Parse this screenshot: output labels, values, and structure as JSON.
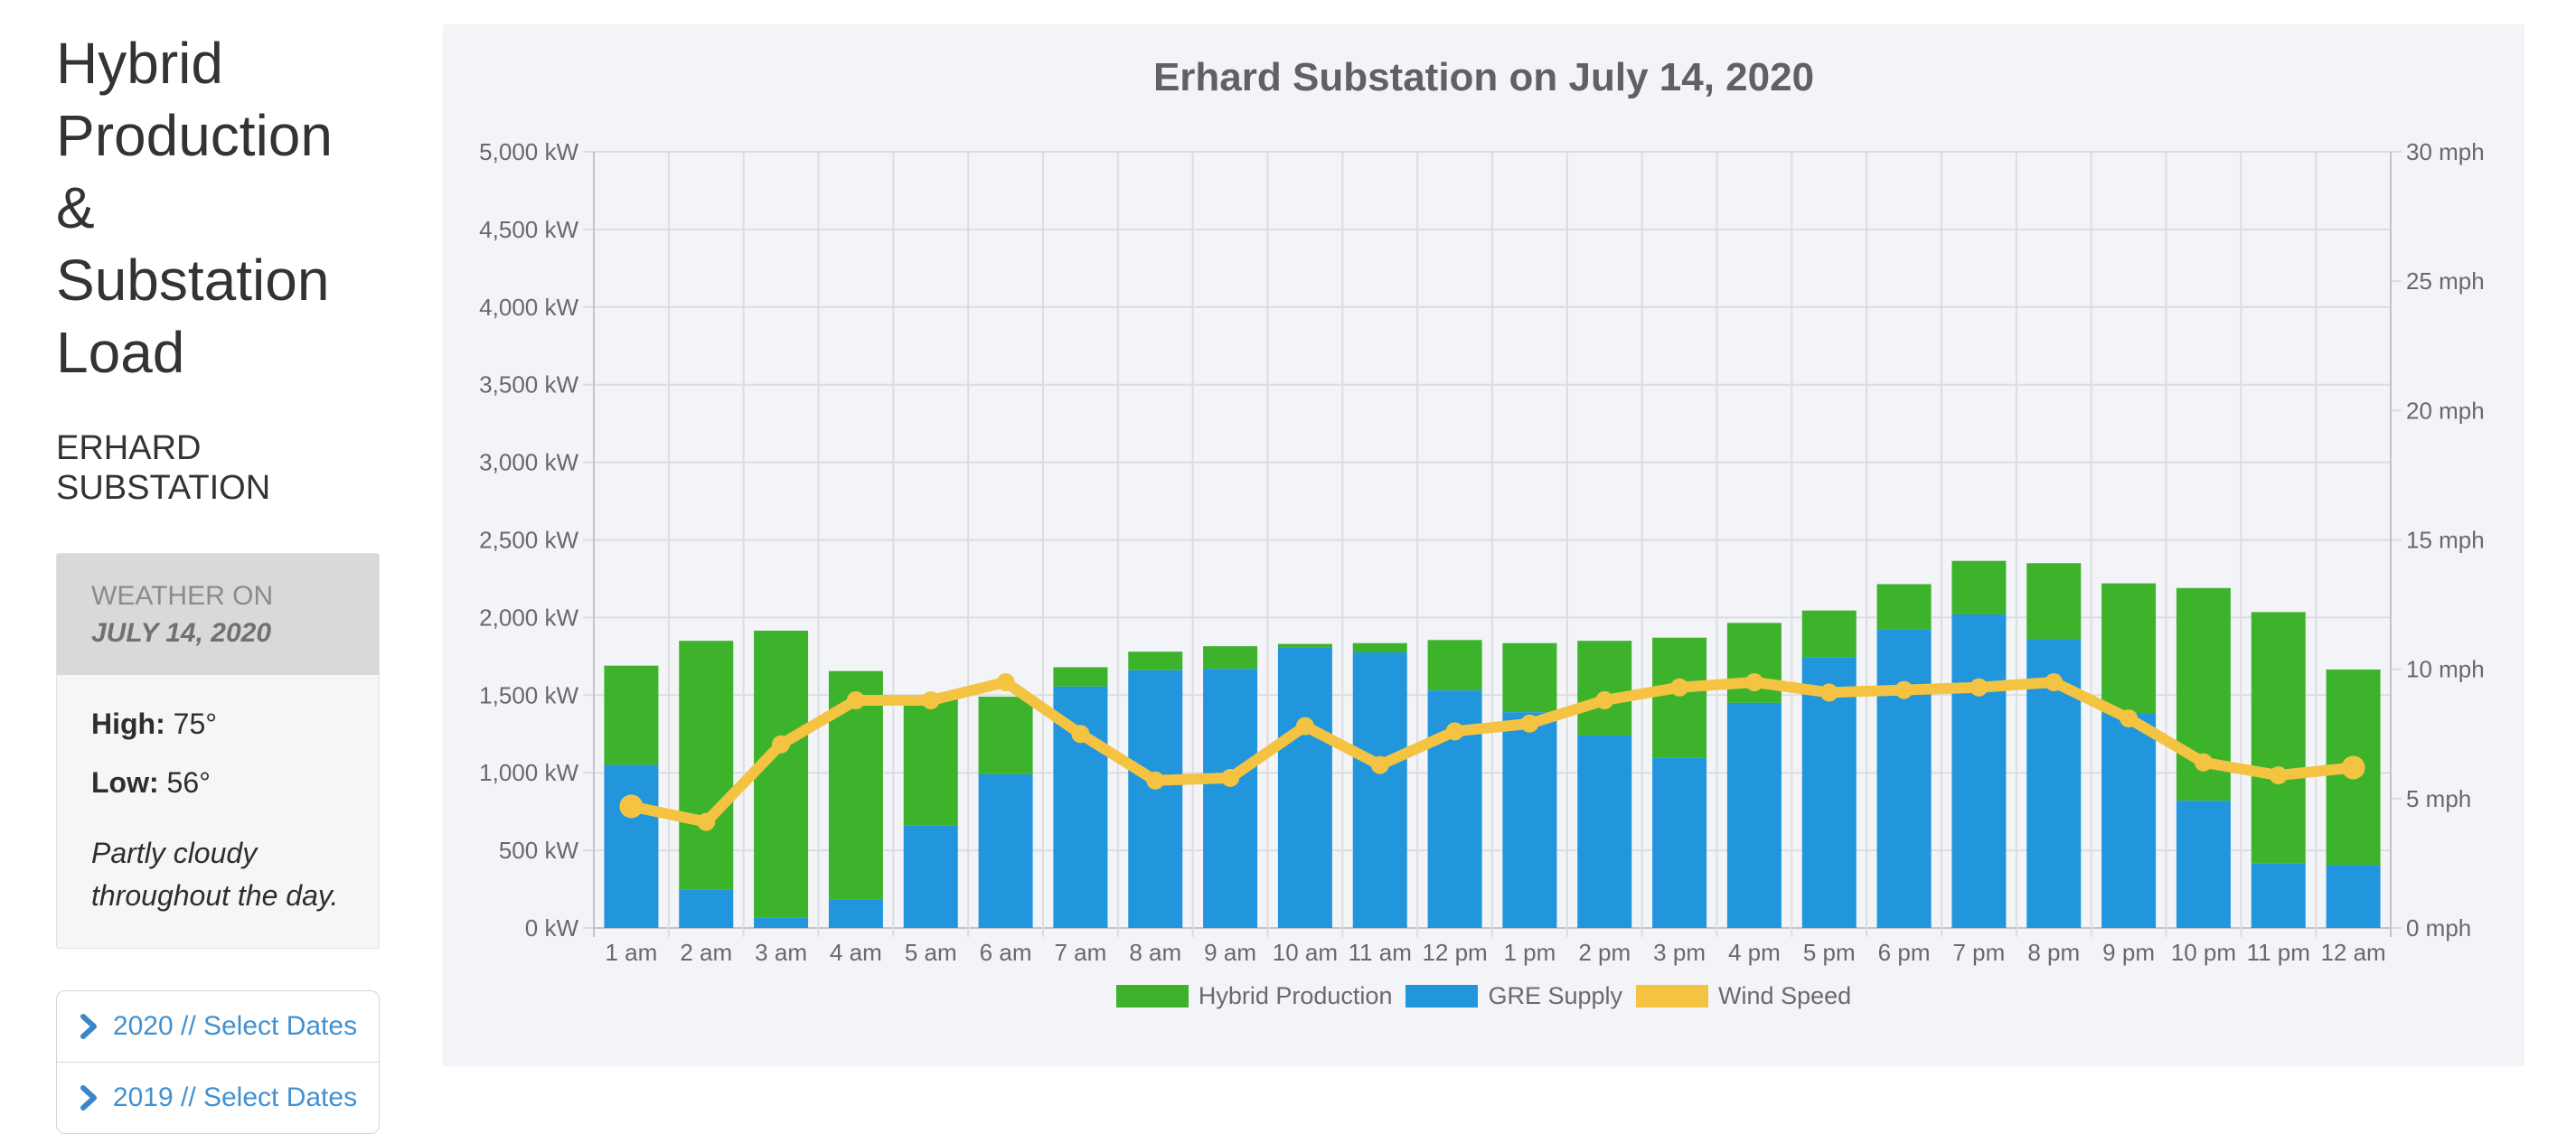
{
  "sidebar": {
    "title": "Hybrid Production & Substation Load",
    "subtitle": "ERHARD SUBSTATION",
    "weather": {
      "header_prefix": "WEATHER ON ",
      "header_date": "JULY 14, 2020",
      "high_label": "High:",
      "high_value": "75°",
      "low_label": "Low:",
      "low_value": "56°",
      "description": "Partly cloudy throughout the day."
    },
    "date_buttons": [
      {
        "label": "2020 // Select Dates"
      },
      {
        "label": "2019 // Select Dates"
      }
    ],
    "link_color": "#4291d0"
  },
  "chart_data": {
    "type": "bar",
    "title": "Erhard Substation on July 14, 2020",
    "stacked": true,
    "grid": true,
    "legend_position": "bottom",
    "categories": [
      "1 am",
      "2 am",
      "3 am",
      "4 am",
      "5 am",
      "6 am",
      "7 am",
      "8 am",
      "9 am",
      "10 am",
      "11 am",
      "12 pm",
      "1 pm",
      "2 pm",
      "3 pm",
      "4 pm",
      "5 pm",
      "6 pm",
      "7 pm",
      "8 pm",
      "9 pm",
      "10 pm",
      "11 pm",
      "12 am"
    ],
    "series": [
      {
        "name": "GRE Supply",
        "type": "bar",
        "unit": "kW",
        "color": "#2196dc",
        "values": [
          1050,
          245,
          65,
          185,
          660,
          990,
          1555,
          1660,
          1670,
          1805,
          1775,
          1530,
          1390,
          1240,
          1095,
          1450,
          1745,
          1925,
          2020,
          1860,
          1385,
          820,
          415,
          405
        ]
      },
      {
        "name": "Hybrid Production",
        "type": "bar",
        "unit": "kW",
        "color": "#3db32c",
        "values": [
          640,
          1605,
          1850,
          1470,
          840,
          500,
          125,
          120,
          145,
          25,
          60,
          325,
          445,
          610,
          775,
          515,
          300,
          290,
          345,
          490,
          835,
          1370,
          1620,
          1260
        ]
      },
      {
        "name": "Wind Speed",
        "type": "line",
        "unit": "mph",
        "color": "#f5c342",
        "values": [
          4.7,
          4.1,
          7.1,
          8.8,
          8.8,
          9.5,
          7.5,
          5.7,
          5.8,
          7.8,
          6.3,
          7.6,
          7.9,
          8.8,
          9.3,
          9.5,
          9.1,
          9.2,
          9.3,
          9.5,
          8.1,
          6.4,
          5.9,
          6.2
        ]
      }
    ],
    "y_left": {
      "min": 0,
      "max": 5000,
      "step": 500,
      "unit": "kW",
      "tick_labels": [
        "0 kW",
        "500 kW",
        "1,000 kW",
        "1,500 kW",
        "2,000 kW",
        "2,500 kW",
        "3,000 kW",
        "3,500 kW",
        "4,000 kW",
        "4,500 kW",
        "5,000 kW"
      ]
    },
    "y_right": {
      "min": 0,
      "max": 30,
      "step": 5,
      "unit": "mph",
      "tick_labels": [
        "0 mph",
        "5 mph",
        "10 mph",
        "15 mph",
        "20 mph",
        "25 mph",
        "30 mph"
      ]
    },
    "legend": [
      {
        "label": "Hybrid Production",
        "color": "#3db32c"
      },
      {
        "label": "GRE Supply",
        "color": "#2196dc"
      },
      {
        "label": "Wind Speed",
        "color": "#f5c342"
      }
    ],
    "colors": {
      "panel_bg": "#f3f4f7",
      "grid": "#dcdde1",
      "axis": "#c2c2c8",
      "tick_text": "#68686d"
    }
  }
}
